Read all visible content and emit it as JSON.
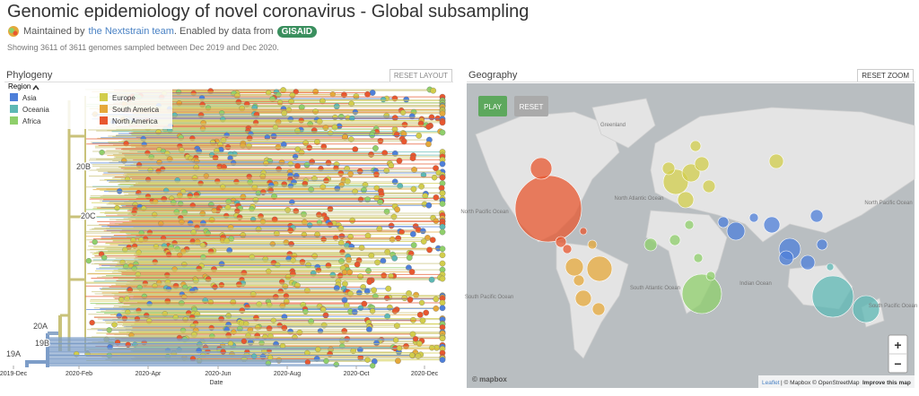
{
  "header": {
    "title": "Genomic epidemiology of novel coronavirus - Global subsampling",
    "maintained": "Maintained by",
    "team": "the Nextstrain team",
    "enabled": ". Enabled by data from",
    "gisaid": "GISAID",
    "summary": "Showing 3611 of 3611 genomes sampled between Dec 2019 and Dec 2020."
  },
  "phylogeny": {
    "title": "Phylogeny",
    "reset": "RESET LAYOUT",
    "legend_title": "Region",
    "legend": [
      {
        "name": "Asia",
        "color": "#4e7fd9"
      },
      {
        "name": "Oceania",
        "color": "#5db8b4"
      },
      {
        "name": "Africa",
        "color": "#8fcf6b"
      },
      {
        "name": "Europe",
        "color": "#d2cd4b"
      },
      {
        "name": "South America",
        "color": "#e5a83a"
      },
      {
        "name": "North America",
        "color": "#e8572f"
      }
    ],
    "clades": [
      "20B",
      "20C",
      "20A",
      "19B",
      "19A"
    ],
    "x_ticks": [
      "2019-Dec",
      "2020-Feb",
      "2020-Apr",
      "2020-Jun",
      "2020-Aug",
      "2020-Oct",
      "2020-Dec"
    ],
    "x_label": "Date"
  },
  "geography": {
    "title": "Geography",
    "reset": "RESET ZOOM",
    "play": "PLAY",
    "reset_button": "RESET",
    "labels": [
      "Greenland",
      "North Atlantic Ocean",
      "North Pacific Ocean",
      "South Pacific Ocean",
      "South Atlantic Ocean",
      "Indian Ocean",
      "South Pacific Ocean",
      "North Pacific Ocean"
    ],
    "zoom_in": "+",
    "zoom_out": "−",
    "attribution_leaflet": "Leaflet",
    "attribution_rest": "| © Mapbox © OpenStreetMap",
    "attribution_improve": "Improve this map",
    "logo": "© mapbox"
  }
}
